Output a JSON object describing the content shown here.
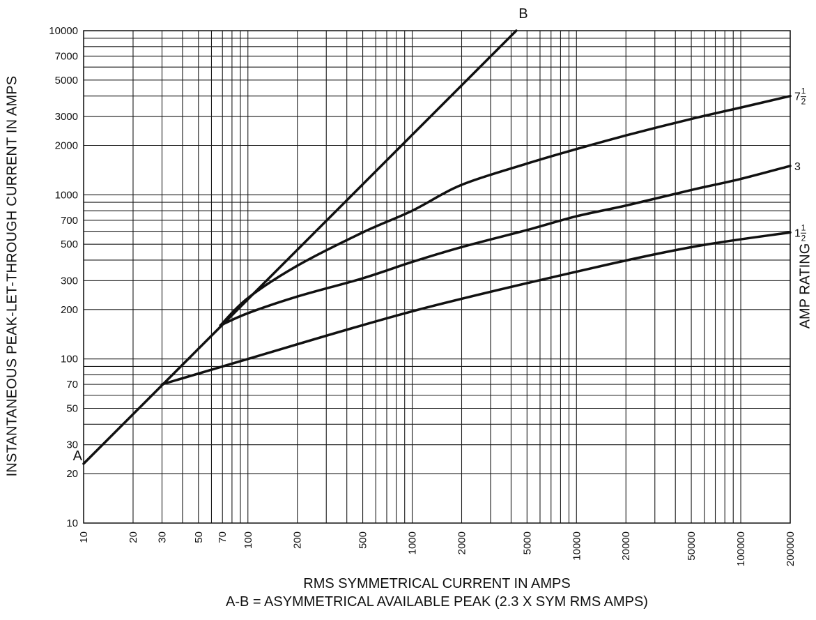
{
  "chart_data": {
    "type": "line",
    "title": "",
    "xlabel": "RMS SYMMETRICAL CURRENT IN AMPS",
    "xlabel2": "A-B = ASYMMETRICAL AVAILABLE PEAK (2.3 X SYM RMS AMPS)",
    "ylabel": "INSTANTANEOUS PEAK-LET-THROUGH CURRENT IN AMPS",
    "right_label": "AMP RATING",
    "x_scale": "log",
    "y_scale": "log",
    "xlim": [
      10,
      200000
    ],
    "ylim": [
      10,
      10000
    ],
    "grid": true,
    "x_ticks": [
      10,
      20,
      30,
      50,
      70,
      100,
      200,
      500,
      1000,
      2000,
      5000,
      10000,
      20000,
      50000,
      100000,
      200000
    ],
    "x_tick_labels": [
      "10",
      "20",
      "30",
      "50",
      "70",
      "100",
      "200",
      "500",
      "1000",
      "2000",
      "5000",
      "10000",
      "20000",
      "50000",
      "100000",
      "200000"
    ],
    "y_ticks": [
      10,
      20,
      30,
      50,
      70,
      100,
      200,
      300,
      500,
      700,
      1000,
      2000,
      3000,
      5000,
      7000,
      10000
    ],
    "y_tick_labels": [
      "10",
      "20",
      "30",
      "50",
      "70",
      "100",
      "200",
      "300",
      "500",
      "700",
      "1000",
      "2000",
      "3000",
      "5000",
      "7000",
      "10000"
    ],
    "series": [
      {
        "name": "A-B",
        "start_label": "A",
        "end_label": "B",
        "x": [
          10,
          4300
        ],
        "y": [
          23,
          10000
        ]
      },
      {
        "name": "7 1/2",
        "label_whole": "7",
        "label_num": "1",
        "label_den": "2",
        "x": [
          68,
          100,
          200,
          500,
          1000,
          2000,
          5000,
          10000,
          20000,
          50000,
          100000,
          200000
        ],
        "y": [
          160,
          235,
          370,
          590,
          800,
          1150,
          1550,
          1900,
          2300,
          2900,
          3400,
          4000
        ]
      },
      {
        "name": "3",
        "label_whole": "3",
        "x": [
          68,
          100,
          200,
          500,
          1000,
          2000,
          5000,
          10000,
          20000,
          50000,
          100000,
          200000
        ],
        "y": [
          160,
          190,
          240,
          310,
          390,
          480,
          610,
          740,
          860,
          1070,
          1250,
          1500
        ]
      },
      {
        "name": "1 1/2",
        "label_whole": "1",
        "label_num": "1",
        "label_den": "2",
        "x": [
          30,
          100,
          1000,
          10000,
          50000,
          200000
        ],
        "y": [
          70,
          100,
          195,
          340,
          480,
          590
        ]
      }
    ]
  }
}
